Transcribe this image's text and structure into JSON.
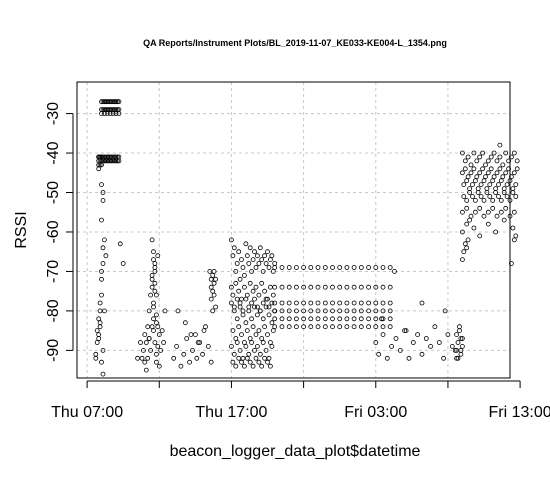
{
  "chart_data": {
    "type": "scatter",
    "title": "QA Reports/Instrument Plots/BL_2019-11-07_KE033-KE004-L_1354.png",
    "xlabel": "beacon_logger_data_plot$datetime",
    "ylabel": "RSSI",
    "x_unit": "hour elapsed since Thu 00:00",
    "xlim": [
      6.3,
      36.3
    ],
    "ylim": [
      -97,
      -22
    ],
    "x_ticks": [
      {
        "value": 7,
        "label": "Thu 07:00"
      },
      {
        "value": 12,
        "label": ""
      },
      {
        "value": 17,
        "label": "Thu 17:00"
      },
      {
        "value": 22,
        "label": ""
      },
      {
        "value": 27,
        "label": "Fri 03:00"
      },
      {
        "value": 32,
        "label": ""
      },
      {
        "value": 37,
        "label": "Fri 13:00"
      }
    ],
    "y_ticks": [
      -90,
      -80,
      -70,
      -60,
      -50,
      -40,
      -30
    ],
    "grid": true,
    "grid_x": [
      7,
      12,
      17,
      22,
      27,
      32
    ],
    "grid_y": [
      -90,
      -80,
      -70,
      -60,
      -50,
      -40,
      -30
    ],
    "point_style": "open-circle",
    "series": [
      {
        "x": [
          7.8,
          7.8,
          7.8,
          7.8,
          7.9,
          7.9,
          7.9,
          8.0,
          8.0,
          8.1,
          8.2,
          8.3,
          8.4,
          8.5,
          8.6,
          8.7,
          8.8,
          8.9,
          9.0,
          9.1,
          9.2,
          8.0,
          8.1,
          8.2,
          8.3,
          8.4,
          8.5,
          8.6,
          8.7,
          8.8,
          8.9,
          9.0,
          9.1,
          9.2,
          8.0,
          8.1,
          8.2,
          8.3,
          8.4,
          8.5,
          8.6,
          8.7,
          8.8,
          8.9,
          9.0,
          9.1,
          9.2,
          8.0,
          8.2,
          8.4,
          8.6,
          8.8,
          9.0,
          9.2,
          7.8,
          7.8,
          7.9,
          7.9,
          7.9,
          8.0,
          8.1,
          8.2,
          8.3,
          8.4,
          8.5,
          8.6,
          8.7,
          8.8,
          8.9,
          9.0,
          9.1,
          9.2,
          7.6,
          7.6,
          7.7,
          7.7,
          7.8,
          7.8,
          7.8,
          7.9,
          7.9,
          7.9,
          7.9,
          8.0,
          8.0,
          8.0,
          8.1,
          8.1,
          8.2,
          8.3,
          9.3,
          9.5,
          8.0,
          8.0,
          8.1,
          8.1,
          8.2,
          8.1,
          8.0,
          8.1
        ],
        "y": [
          -42,
          -43,
          -44,
          -41,
          -42,
          -43,
          -41,
          -42,
          -43,
          -42,
          -42,
          -42,
          -42,
          -42,
          -42,
          -42,
          -42,
          -42,
          -42,
          -42,
          -42,
          -27,
          -27,
          -27,
          -27,
          -27,
          -27,
          -27,
          -27,
          -27,
          -27,
          -27,
          -27,
          -27,
          -29,
          -29,
          -29,
          -29,
          -29,
          -29,
          -29,
          -29,
          -29,
          -29,
          -29,
          -29,
          -29,
          -30,
          -30,
          -30,
          -30,
          -30,
          -30,
          -30,
          -41,
          -41,
          -41,
          -41,
          -41,
          -41,
          -41,
          -41,
          -41,
          -41,
          -41,
          -41,
          -41,
          -41,
          -41,
          -41,
          -41,
          -41,
          -91,
          -92,
          -88,
          -85,
          -86,
          -87,
          -82,
          -80,
          -83,
          -84,
          -78,
          -76,
          -72,
          -70,
          -68,
          -64,
          -62,
          -66,
          -63,
          -68,
          -57,
          -48,
          -52,
          -50,
          -80,
          -90,
          -93,
          -96
        ]
      },
      {
        "x": [
          10.8,
          10.9,
          11.0,
          11.0,
          11.1,
          11.2,
          11.2,
          11.3,
          11.3,
          11.4,
          11.4,
          11.5,
          11.5,
          11.6,
          11.6,
          11.7,
          11.7,
          11.7,
          11.8,
          11.8,
          11.9,
          11.9,
          12.0,
          12.1,
          12.2,
          12.3,
          12.4,
          11.5,
          11.5,
          11.6,
          11.6,
          11.7,
          11.7,
          11.8,
          11.8,
          11.6,
          11.7,
          11.5,
          11.6,
          10.5,
          11.1,
          11.3,
          11.8,
          12.0,
          11.9,
          10.7
        ],
        "y": [
          -92,
          -90,
          -93,
          -86,
          -88,
          -92,
          -84,
          -80,
          -87,
          -76,
          -90,
          -72,
          -84,
          -78,
          -82,
          -75,
          -88,
          -69,
          -81,
          -93,
          -84,
          -89,
          -86,
          -90,
          -85,
          -88,
          -80,
          -71,
          -74,
          -67,
          -79,
          -73,
          -70,
          -83,
          -76,
          -65,
          -68,
          -62,
          -85,
          -92,
          -95,
          -87,
          -91,
          -94,
          -66,
          -88
        ]
      },
      {
        "x": [
          13.0,
          13.2,
          13.5,
          13.7,
          13.9,
          14.1,
          14.3,
          14.5,
          14.6,
          14.8,
          15.0,
          15.2,
          15.4,
          15.6,
          15.5,
          15.6,
          15.6,
          15.7,
          15.7,
          15.8,
          15.8,
          15.9,
          15.9,
          15.7,
          15.6,
          15.8,
          13.3,
          13.8,
          14.2,
          14.7,
          15.1
        ],
        "y": [
          -92,
          -89,
          -94,
          -91,
          -87,
          -93,
          -90,
          -86,
          -92,
          -88,
          -91,
          -84,
          -89,
          -93,
          -70,
          -72,
          -74,
          -71,
          -75,
          -73,
          -76,
          -72,
          -79,
          -80,
          -77,
          -70,
          -80,
          -83,
          -86,
          -88,
          -85
        ]
      },
      {
        "x": [
          17.0,
          17.1,
          17.2,
          17.3,
          17.4,
          17.5,
          17.6,
          17.7,
          17.8,
          17.9,
          18.0,
          18.1,
          18.2,
          18.3,
          18.4,
          18.5,
          18.6,
          18.7,
          18.8,
          18.9,
          19.0,
          19.1,
          19.2,
          19.3,
          19.4,
          19.5,
          19.6,
          19.7,
          19.8,
          19.9,
          20.0,
          17.0,
          17.1,
          17.3,
          17.5,
          17.7,
          17.9,
          18.1,
          18.3,
          18.5,
          18.7,
          18.9,
          19.1,
          19.3,
          19.5,
          19.7,
          19.9,
          17.2,
          17.4,
          17.6,
          17.8,
          18.0,
          18.2,
          18.4,
          18.6,
          18.8,
          19.0,
          19.2,
          19.4,
          19.6,
          19.8,
          20.0,
          17.1,
          17.3,
          17.5,
          17.7,
          17.9,
          18.1,
          18.3,
          18.5,
          18.7,
          18.9,
          19.1,
          19.3,
          19.5,
          19.7,
          19.9,
          17.0,
          17.2,
          17.4,
          17.6,
          17.8,
          18.0,
          18.2,
          18.4,
          18.6,
          18.8,
          19.0,
          19.2,
          19.4,
          19.6,
          19.8,
          17.1,
          17.3,
          17.5,
          17.7,
          17.9,
          18.1,
          18.3,
          18.5,
          18.7,
          18.9,
          19.1,
          19.3,
          19.5,
          19.7,
          17.0,
          17.2,
          17.4,
          17.6,
          17.8,
          18.0,
          18.2,
          18.4,
          18.6,
          18.8,
          19.0,
          19.2,
          19.4,
          19.6,
          19.8,
          20.0
        ],
        "y": [
          -62,
          -66,
          -64,
          -70,
          -68,
          -65,
          -72,
          -67,
          -69,
          -71,
          -63,
          -66,
          -68,
          -64,
          -70,
          -67,
          -65,
          -69,
          -66,
          -68,
          -64,
          -67,
          -70,
          -66,
          -68,
          -65,
          -69,
          -67,
          -66,
          -70,
          -68,
          -74,
          -76,
          -73,
          -75,
          -77,
          -74,
          -76,
          -73,
          -75,
          -74,
          -76,
          -73,
          -75,
          -77,
          -74,
          -76,
          -80,
          -82,
          -79,
          -81,
          -83,
          -80,
          -82,
          -79,
          -81,
          -80,
          -82,
          -79,
          -81,
          -83,
          -80,
          -85,
          -87,
          -84,
          -86,
          -88,
          -85,
          -87,
          -84,
          -86,
          -85,
          -87,
          -84,
          -86,
          -88,
          -85,
          -89,
          -91,
          -88,
          -90,
          -92,
          -89,
          -91,
          -88,
          -90,
          -89,
          -91,
          -88,
          -90,
          -92,
          -89,
          -93,
          -94,
          -92,
          -93,
          -94,
          -92,
          -93,
          -94,
          -92,
          -93,
          -94,
          -92,
          -93,
          -94,
          -78,
          -79,
          -77,
          -78,
          -80,
          -77,
          -79,
          -78,
          -77,
          -79,
          -80,
          -78,
          -77,
          -79,
          -78,
          -80
        ]
      },
      {
        "x": [
          20.0,
          20.5,
          21.0,
          21.5,
          22.0,
          22.5,
          23.0,
          23.5,
          24.0,
          24.5,
          25.0,
          25.5,
          26.0,
          26.5,
          27.0,
          27.5,
          28.0,
          20.0,
          20.5,
          21.0,
          21.5,
          22.0,
          22.5,
          23.0,
          23.5,
          24.0,
          24.5,
          25.0,
          25.5,
          26.0,
          26.5,
          27.0,
          27.5,
          28.0,
          20.0,
          20.5,
          21.0,
          21.5,
          22.0,
          22.5,
          23.0,
          23.5,
          24.0,
          24.5,
          25.0,
          25.5,
          26.0,
          26.5,
          27.0,
          27.5,
          28.0,
          20.0,
          20.5,
          21.0,
          21.5,
          22.0,
          22.5,
          23.0,
          23.5,
          24.0,
          24.5,
          25.0,
          25.5,
          26.0,
          26.5,
          27.0,
          27.5,
          28.0,
          20.0,
          20.5,
          21.0,
          21.5,
          22.0,
          22.5,
          23.0,
          23.5,
          24.0,
          24.5,
          25.0,
          25.5,
          26.0,
          26.5,
          27.0,
          27.5,
          28.0,
          20.0,
          20.5,
          21.0,
          21.5,
          22.0,
          22.5,
          23.0,
          23.5,
          24.0,
          24.5,
          25.0,
          25.5,
          26.0,
          26.5,
          27.0,
          27.5,
          28.0
        ],
        "y": [
          -69,
          -69,
          -69,
          -69,
          -69,
          -69,
          -69,
          -69,
          -69,
          -69,
          -69,
          -69,
          -69,
          -69,
          -69,
          -69,
          -69,
          -74,
          -74,
          -74,
          -74,
          -74,
          -74,
          -74,
          -74,
          -74,
          -74,
          -74,
          -74,
          -74,
          -74,
          -74,
          -74,
          -74,
          -78,
          -78,
          -78,
          -78,
          -78,
          -78,
          -78,
          -78,
          -78,
          -78,
          -78,
          -78,
          -78,
          -78,
          -78,
          -78,
          -78,
          -80,
          -80,
          -80,
          -80,
          -80,
          -80,
          -80,
          -80,
          -80,
          -80,
          -80,
          -80,
          -80,
          -80,
          -80,
          -80,
          -80,
          -82,
          -82,
          -82,
          -82,
          -82,
          -82,
          -82,
          -82,
          -82,
          -82,
          -82,
          -82,
          -82,
          -82,
          -82,
          -82,
          -82,
          -84,
          -84,
          -84,
          -84,
          -84,
          -84,
          -84,
          -84,
          -84,
          -84,
          -84,
          -84,
          -84,
          -84,
          -84,
          -84,
          -84
        ]
      },
      {
        "x": [
          27.0,
          27.2,
          27.5,
          27.8,
          28.1,
          28.4,
          28.7,
          29.0,
          29.3,
          29.6,
          29.9,
          30.2,
          30.5,
          30.8,
          31.1,
          31.4,
          31.7,
          32.0,
          32.3,
          32.6,
          32.9,
          28.3,
          30.2,
          31.8,
          27.4,
          29.1
        ],
        "y": [
          -88,
          -91,
          -86,
          -92,
          -89,
          -87,
          -90,
          -85,
          -92,
          -88,
          -86,
          -91,
          -87,
          -89,
          -84,
          -88,
          -92,
          -86,
          -89,
          -90,
          -87,
          -70,
          -78,
          -80,
          -82,
          -85
        ]
      },
      {
        "x": [
          32.5,
          32.6,
          32.7,
          32.8,
          32.9,
          33.0,
          32.6,
          32.8,
          33.0,
          32.7,
          32.9
        ],
        "y": [
          -90,
          -92,
          -88,
          -85,
          -91,
          -89,
          -86,
          -84,
          -87,
          -92,
          -90
        ]
      },
      {
        "x": [
          33.0,
          33.2,
          33.4,
          33.6,
          33.8,
          34.0,
          34.2,
          34.4,
          34.6,
          34.8,
          35.0,
          35.2,
          35.4,
          35.6,
          35.8,
          36.0,
          36.2,
          36.4,
          36.6,
          36.8,
          33.0,
          33.2,
          33.4,
          33.6,
          33.8,
          34.0,
          34.2,
          34.4,
          34.6,
          34.8,
          35.0,
          35.2,
          35.4,
          35.6,
          35.8,
          36.0,
          36.2,
          36.4,
          36.6,
          36.8,
          33.1,
          33.3,
          33.5,
          33.7,
          33.9,
          34.1,
          34.3,
          34.5,
          34.7,
          34.9,
          35.1,
          35.3,
          35.5,
          35.7,
          35.9,
          36.1,
          36.3,
          36.5,
          36.7,
          33.1,
          33.3,
          33.5,
          33.7,
          33.9,
          34.1,
          34.3,
          34.5,
          34.7,
          34.9,
          35.1,
          35.3,
          35.5,
          35.7,
          35.9,
          36.1,
          36.3,
          36.5,
          36.7,
          33.0,
          33.3,
          33.6,
          33.9,
          34.2,
          34.5,
          34.8,
          35.1,
          35.4,
          35.7,
          36.0,
          36.3,
          36.6,
          33.0,
          33.2,
          33.1,
          33.3,
          33.0,
          33.4,
          33.5,
          33.8,
          34.2,
          34.8,
          35.3,
          35.9,
          36.5,
          36.6,
          36.7,
          33.3,
          35.6,
          36.4
        ],
        "y": [
          -40,
          -42,
          -41,
          -43,
          -40,
          -42,
          -41,
          -40,
          -43,
          -42,
          -41,
          -40,
          -42,
          -41,
          -43,
          -40,
          -42,
          -41,
          -40,
          -42,
          -45,
          -44,
          -46,
          -45,
          -44,
          -46,
          -45,
          -44,
          -46,
          -45,
          -44,
          -46,
          -45,
          -44,
          -46,
          -45,
          -44,
          -46,
          -45,
          -44,
          -48,
          -47,
          -49,
          -48,
          -47,
          -49,
          -48,
          -47,
          -49,
          -48,
          -47,
          -49,
          -48,
          -47,
          -49,
          -48,
          -47,
          -49,
          -48,
          -51,
          -52,
          -50,
          -51,
          -52,
          -50,
          -51,
          -52,
          -50,
          -51,
          -52,
          -50,
          -51,
          -52,
          -50,
          -51,
          -52,
          -50,
          -51,
          -55,
          -54,
          -56,
          -55,
          -54,
          -56,
          -55,
          -54,
          -56,
          -55,
          -54,
          -56,
          -55,
          -60,
          -63,
          -65,
          -58,
          -67,
          -62,
          -57,
          -59,
          -61,
          -58,
          -60,
          -57,
          -59,
          -62,
          -61,
          -64,
          -38,
          -68
        ]
      }
    ]
  }
}
